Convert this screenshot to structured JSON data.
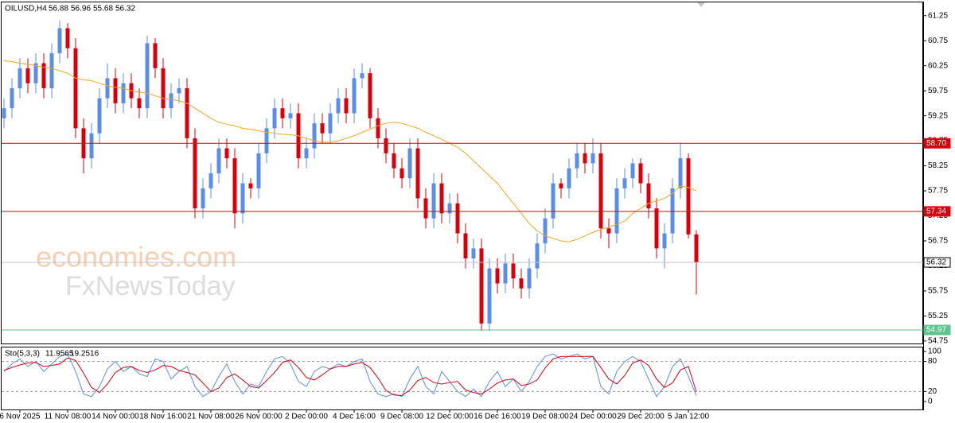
{
  "chart_data": {
    "type": "candlestick",
    "symbol": "OILUSD,H4",
    "up_color": "#5b8ee6",
    "down_color": "#d9000c",
    "ylim": [
      54.7,
      61.5
    ],
    "yticks": [
      54.75,
      55.25,
      55.75,
      56.25,
      56.75,
      57.25,
      57.75,
      58.25,
      58.75,
      59.25,
      59.75,
      60.25,
      60.75,
      61.25
    ],
    "categories": [
      null,
      null,
      "6 Nov 2025",
      null,
      null,
      null,
      null,
      null,
      "11 Nov 08:00",
      null,
      null,
      null,
      null,
      null,
      "14 Nov 00:00",
      null,
      null,
      null,
      null,
      null,
      "18 Nov 16:00",
      null,
      null,
      null,
      null,
      null,
      "21 Nov 08:00",
      null,
      null,
      null,
      null,
      null,
      "26 Nov 00:00",
      null,
      null,
      null,
      null,
      null,
      "2 Dec 00:00",
      null,
      null,
      null,
      null,
      null,
      "4 Dec 16:00",
      null,
      null,
      null,
      null,
      null,
      "9 Dec 08:00",
      null,
      null,
      null,
      null,
      null,
      "12 Dec 00:00",
      null,
      null,
      null,
      null,
      null,
      "16 Dec 16:00",
      null,
      null,
      null,
      null,
      null,
      "19 Dec 08:00",
      null,
      null,
      null,
      null,
      null,
      "24 Dec 00:00",
      null,
      null,
      null,
      null,
      null,
      "29 Dec 20:00",
      null,
      null,
      null,
      null,
      null,
      "5 Jan 12:00",
      null
    ],
    "open": [
      59.2,
      59.4,
      59.8,
      60.2,
      59.9,
      60.3,
      59.8,
      60.5,
      61.0,
      60.6,
      59.0,
      58.4,
      58.9,
      59.6,
      60.0,
      59.5,
      59.9,
      59.6,
      59.4,
      60.7,
      60.2,
      59.4,
      59.7,
      59.8,
      58.8,
      57.4,
      57.8,
      58.1,
      58.6,
      58.4,
      57.3,
      57.9,
      57.8,
      58.5,
      59.0,
      59.4,
      59.2,
      59.3,
      58.4,
      58.6,
      59.1,
      58.9,
      59.3,
      59.6,
      59.3,
      60.0,
      60.1,
      59.2,
      58.8,
      58.5,
      58.2,
      58.0,
      58.6,
      57.6,
      57.2,
      57.9,
      57.3,
      57.5,
      56.9,
      56.4,
      56.6,
      55.1,
      56.2,
      55.9,
      56.3,
      56.0,
      55.8,
      56.2,
      56.7,
      57.2,
      57.9,
      57.8,
      58.2,
      58.5,
      58.3,
      58.5,
      57.0,
      56.9,
      57.8,
      58.0,
      58.3,
      57.9,
      57.4,
      56.6,
      56.9,
      57.8,
      58.4,
      56.88
    ],
    "high": [
      59.6,
      60.0,
      60.4,
      60.4,
      60.5,
      60.5,
      60.7,
      61.15,
      61.1,
      60.8,
      59.2,
      59.1,
      59.8,
      60.3,
      60.2,
      60.1,
      60.1,
      59.8,
      60.85,
      60.8,
      60.4,
      59.9,
      60.0,
      60.0,
      59.0,
      58.0,
      58.3,
      58.8,
      58.8,
      58.6,
      58.1,
      58.0,
      58.7,
      59.2,
      59.6,
      59.6,
      59.5,
      59.5,
      58.8,
      59.3,
      59.3,
      59.5,
      59.8,
      59.8,
      60.2,
      60.3,
      60.2,
      59.4,
      59.0,
      58.7,
      58.4,
      58.8,
      58.8,
      57.8,
      58.1,
      58.1,
      57.7,
      57.7,
      57.1,
      56.8,
      56.8,
      56.4,
      56.4,
      56.5,
      56.5,
      56.2,
      56.4,
      56.9,
      57.4,
      58.1,
      58.0,
      58.4,
      58.7,
      58.7,
      58.8,
      58.7,
      57.2,
      58.0,
      58.2,
      58.4,
      58.4,
      58.1,
      57.6,
      57.1,
      58.0,
      58.72,
      58.5,
      56.96
    ],
    "low": [
      59.0,
      59.2,
      59.6,
      59.7,
      59.7,
      59.6,
      59.6,
      60.3,
      60.4,
      58.8,
      58.1,
      58.2,
      58.7,
      59.4,
      59.3,
      59.3,
      59.4,
      59.2,
      59.2,
      60.0,
      59.2,
      59.2,
      59.5,
      58.6,
      57.2,
      57.2,
      57.6,
      57.9,
      58.2,
      57.0,
      57.1,
      57.6,
      57.6,
      58.3,
      58.8,
      59.0,
      59.0,
      58.2,
      58.2,
      58.4,
      58.7,
      58.7,
      59.1,
      59.1,
      59.1,
      59.8,
      59.0,
      58.6,
      58.3,
      58.0,
      57.8,
      57.8,
      57.4,
      57.0,
      57.0,
      57.1,
      57.1,
      56.7,
      56.2,
      56.2,
      54.95,
      54.95,
      55.7,
      55.7,
      55.8,
      55.6,
      55.6,
      56.0,
      56.5,
      57.0,
      57.6,
      57.6,
      58.0,
      58.1,
      58.1,
      56.8,
      56.6,
      56.7,
      57.6,
      57.8,
      57.7,
      57.2,
      56.4,
      56.2,
      56.7,
      57.6,
      56.8,
      55.68
    ],
    "close": [
      59.4,
      59.8,
      60.2,
      59.9,
      60.3,
      59.8,
      60.5,
      61.0,
      60.6,
      59.0,
      58.4,
      58.9,
      59.6,
      60.0,
      59.5,
      59.9,
      59.6,
      59.4,
      60.7,
      60.2,
      59.4,
      59.7,
      59.8,
      58.8,
      57.4,
      57.8,
      58.1,
      58.6,
      58.4,
      57.3,
      57.9,
      57.8,
      58.5,
      59.0,
      59.4,
      59.2,
      59.3,
      58.4,
      58.6,
      59.1,
      58.9,
      59.3,
      59.6,
      59.3,
      60.0,
      60.1,
      59.2,
      58.8,
      58.5,
      58.2,
      58.0,
      58.6,
      57.6,
      57.2,
      57.9,
      57.3,
      57.5,
      56.9,
      56.4,
      56.6,
      55.1,
      56.2,
      55.9,
      56.3,
      56.0,
      55.8,
      56.2,
      56.7,
      57.2,
      57.9,
      57.8,
      58.2,
      58.5,
      58.3,
      58.5,
      57.0,
      56.9,
      57.8,
      58.0,
      58.3,
      57.9,
      57.4,
      56.6,
      56.9,
      57.8,
      58.4,
      56.88,
      56.32
    ],
    "ma": {
      "color": "#f5a623",
      "values": [
        60.35,
        60.33,
        60.3,
        60.28,
        60.25,
        60.22,
        60.2,
        60.15,
        60.1,
        60.0,
        59.97,
        59.95,
        59.9,
        59.85,
        59.82,
        59.8,
        59.75,
        59.72,
        59.7,
        59.65,
        59.6,
        59.58,
        59.55,
        59.5,
        59.4,
        59.3,
        59.2,
        59.12,
        59.08,
        59.05,
        59.0,
        58.98,
        58.95,
        58.92,
        58.9,
        58.88,
        58.87,
        58.85,
        58.8,
        58.75,
        58.72,
        58.72,
        58.75,
        58.8,
        58.85,
        58.92,
        58.98,
        59.05,
        59.1,
        59.12,
        59.1,
        59.05,
        59.0,
        58.92,
        58.85,
        58.78,
        58.7,
        58.62,
        58.5,
        58.35,
        58.2,
        58.05,
        57.9,
        57.7,
        57.5,
        57.3,
        57.1,
        56.95,
        56.85,
        56.8,
        56.75,
        56.73,
        56.78,
        56.85,
        56.92,
        56.98,
        57.02,
        57.08,
        57.15,
        57.3,
        57.4,
        57.5,
        57.55,
        57.6,
        57.7,
        57.85,
        57.82,
        57.75
      ]
    },
    "levels": [
      {
        "value": 58.7,
        "label": "58.70",
        "color": "#d9000c",
        "text_color": "#ffffff"
      },
      {
        "value": 57.34,
        "color": "#d9000c",
        "text_color": "#ffffff"
      },
      {
        "value": 56.32,
        "color": "#c0c0c0",
        "text_color": "#000000"
      },
      {
        "value": 54.97,
        "color": "#5cc48c",
        "text_color": "#ffffff"
      }
    ],
    "watermark": [
      "economies.com",
      "FxNewsToday"
    ],
    "stochastic": {
      "label": "Sto(5,3,3)",
      "ylim": [
        0,
        100
      ],
      "yticks": [
        0,
        20,
        80,
        100
      ],
      "main": {
        "color": "#5b8ee6",
        "values": [
          60,
          75,
          85,
          70,
          80,
          60,
          75,
          90,
          95,
          60,
          15,
          10,
          30,
          65,
          80,
          60,
          70,
          55,
          50,
          85,
          80,
          45,
          60,
          70,
          30,
          10,
          20,
          50,
          75,
          40,
          15,
          35,
          30,
          60,
          85,
          90,
          75,
          40,
          30,
          60,
          70,
          65,
          75,
          70,
          80,
          85,
          40,
          15,
          10,
          15,
          10,
          45,
          70,
          30,
          15,
          60,
          40,
          20,
          10,
          25,
          10,
          40,
          60,
          30,
          45,
          20,
          40,
          70,
          90,
          95,
          85,
          90,
          95,
          85,
          90,
          30,
          15,
          60,
          80,
          90,
          80,
          45,
          10,
          30,
          70,
          85,
          50,
          11.9565
        ]
      },
      "signal": {
        "color": "#d9000c",
        "values": [
          62,
          68,
          73,
          77,
          78,
          70,
          72,
          75,
          87,
          82,
          57,
          28,
          18,
          35,
          58,
          68,
          70,
          62,
          58,
          63,
          72,
          70,
          62,
          58,
          53,
          37,
          20,
          27,
          48,
          55,
          43,
          30,
          27,
          42,
          58,
          78,
          83,
          68,
          48,
          43,
          53,
          65,
          70,
          70,
          75,
          78,
          68,
          47,
          22,
          13,
          12,
          23,
          42,
          48,
          38,
          35,
          38,
          40,
          23,
          18,
          15,
          25,
          37,
          43,
          45,
          32,
          35,
          43,
          67,
          85,
          90,
          90,
          90,
          90,
          90,
          68,
          45,
          35,
          52,
          77,
          83,
          72,
          45,
          28,
          37,
          63,
          70,
          19.2516
        ]
      }
    }
  }
}
